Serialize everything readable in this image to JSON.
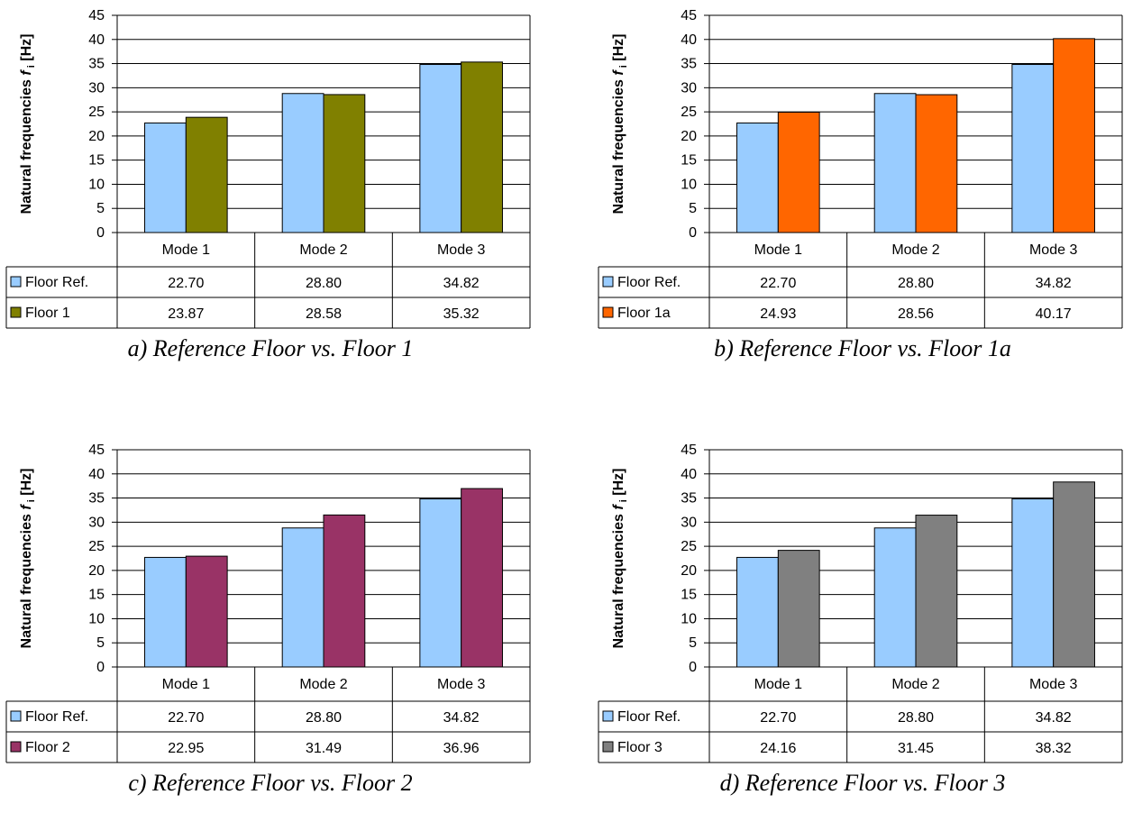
{
  "ylabel": "Natural frequencies",
  "ylabel_symbol": "f",
  "ylabel_subscript": "i",
  "ylabel_unit": "[Hz]",
  "chart_data": [
    {
      "type": "bar",
      "caption": "a) Reference Floor vs. Floor 1",
      "categories": [
        "Mode 1",
        "Mode 2",
        "Mode 3"
      ],
      "ylim": [
        0,
        45
      ],
      "yticks": [
        0,
        5,
        10,
        15,
        20,
        25,
        30,
        35,
        40,
        45
      ],
      "grid": true,
      "series": [
        {
          "name": "Floor Ref.",
          "color": "#99ccff",
          "values": [
            22.7,
            28.8,
            34.82
          ],
          "labels": [
            "22.70",
            "28.80",
            "34.82"
          ]
        },
        {
          "name": "Floor 1",
          "color": "#808000",
          "values": [
            23.87,
            28.58,
            35.32
          ],
          "labels": [
            "23.87",
            "28.58",
            "35.32"
          ]
        }
      ]
    },
    {
      "type": "bar",
      "caption": "b) Reference Floor vs. Floor 1a",
      "categories": [
        "Mode 1",
        "Mode 2",
        "Mode 3"
      ],
      "ylim": [
        0,
        45
      ],
      "yticks": [
        0,
        5,
        10,
        15,
        20,
        25,
        30,
        35,
        40,
        45
      ],
      "grid": true,
      "series": [
        {
          "name": "Floor Ref.",
          "color": "#99ccff",
          "values": [
            22.7,
            28.8,
            34.82
          ],
          "labels": [
            "22.70",
            "28.80",
            "34.82"
          ]
        },
        {
          "name": "Floor 1a",
          "color": "#ff6600",
          "values": [
            24.93,
            28.56,
            40.17
          ],
          "labels": [
            "24.93",
            "28.56",
            "40.17"
          ]
        }
      ]
    },
    {
      "type": "bar",
      "caption": "c) Reference Floor vs. Floor 2",
      "categories": [
        "Mode 1",
        "Mode 2",
        "Mode 3"
      ],
      "ylim": [
        0,
        45
      ],
      "yticks": [
        0,
        5,
        10,
        15,
        20,
        25,
        30,
        35,
        40,
        45
      ],
      "grid": true,
      "series": [
        {
          "name": "Floor Ref.",
          "color": "#99ccff",
          "values": [
            22.7,
            28.8,
            34.82
          ],
          "labels": [
            "22.70",
            "28.80",
            "34.82"
          ]
        },
        {
          "name": "Floor 2",
          "color": "#993366",
          "values": [
            22.95,
            31.49,
            36.96
          ],
          "labels": [
            "22.95",
            "31.49",
            "36.96"
          ]
        }
      ]
    },
    {
      "type": "bar",
      "caption": "d) Reference Floor vs. Floor 3",
      "categories": [
        "Mode 1",
        "Mode 2",
        "Mode 3"
      ],
      "ylim": [
        0,
        45
      ],
      "yticks": [
        0,
        5,
        10,
        15,
        20,
        25,
        30,
        35,
        40,
        45
      ],
      "grid": true,
      "series": [
        {
          "name": "Floor Ref.",
          "color": "#99ccff",
          "values": [
            22.7,
            28.8,
            34.82
          ],
          "labels": [
            "22.70",
            "28.80",
            "34.82"
          ]
        },
        {
          "name": "Floor 3",
          "color": "#808080",
          "values": [
            24.16,
            31.45,
            38.32
          ],
          "labels": [
            "24.16",
            "31.45",
            "38.32"
          ]
        }
      ]
    }
  ]
}
